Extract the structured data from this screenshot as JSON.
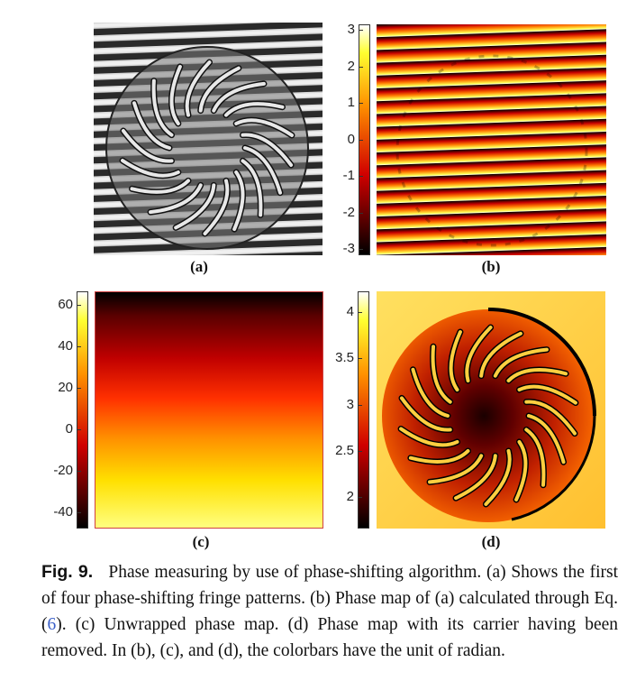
{
  "panels": {
    "a": {
      "label": "(a)"
    },
    "b": {
      "label": "(b)",
      "colorbar_ticks": [
        "3",
        "2",
        "1",
        "0",
        "-1",
        "-2",
        "-3"
      ]
    },
    "c": {
      "label": "(c)",
      "colorbar_ticks": [
        "60",
        "40",
        "20",
        "0",
        "-20",
        "-40"
      ]
    },
    "d": {
      "label": "(d)",
      "colorbar_ticks": [
        "4",
        "3.5",
        "3",
        "2.5",
        "2"
      ]
    }
  },
  "caption": {
    "fig_label": "Fig. 9.",
    "text_1": "Phase measuring by use of phase-shifting algorithm. (a) Shows the first of four phase-shifting fringe patterns. (b) Phase map of (a) calculated through Eq. (",
    "eq_ref": "6",
    "text_2": "). (c) Unwrapped phase map. (d) Phase map with its carrier having been removed. In (b), (c), and (d), the colorbars have the unit of radian."
  },
  "colors": {
    "hot_dark": "#000000",
    "hot_red": "#e00000",
    "hot_orange": "#ff8000",
    "hot_yellow": "#ffff40",
    "hot_white": "#ffffff",
    "eq_link": "#3a5fc8"
  }
}
